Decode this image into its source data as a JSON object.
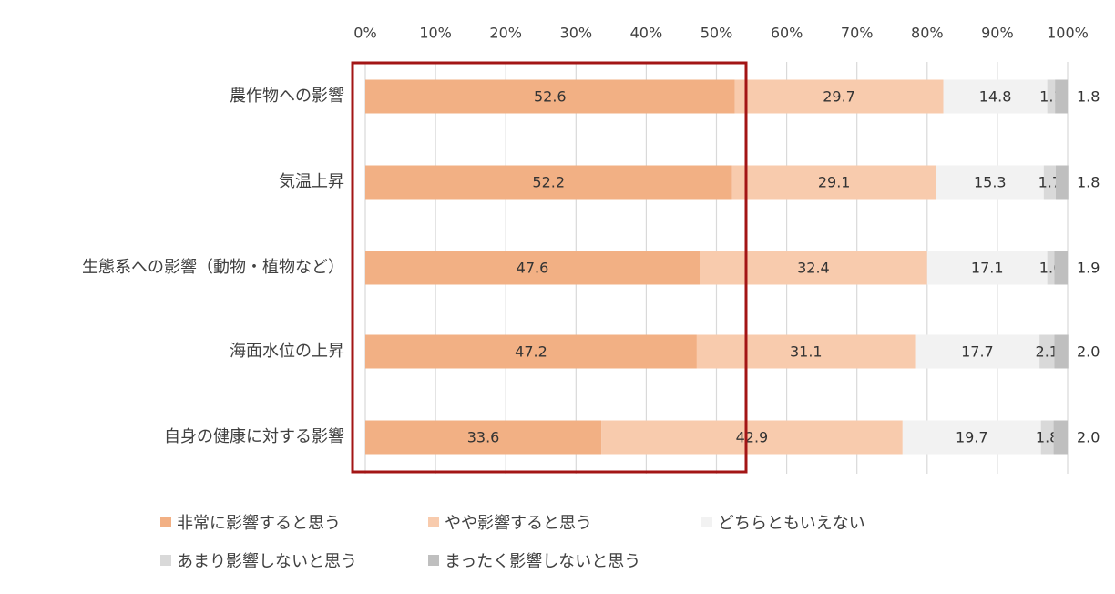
{
  "colors": {
    "very": "#F2B084",
    "somewhat": "#F8CBAD",
    "neutral": "#F2F2F2",
    "little": "#D9D9D9",
    "none": "#BFBFBF",
    "highlight": "#A31515",
    "grid": "#D9D9D9"
  },
  "chart_data": {
    "type": "bar",
    "orientation": "horizontal",
    "stacked": "percent",
    "x_ticks": [
      "0%",
      "10%",
      "20%",
      "30%",
      "40%",
      "50%",
      "60%",
      "70%",
      "80%",
      "90%",
      "100%"
    ],
    "xlim": [
      0,
      100
    ],
    "grid": true,
    "legend_position": "bottom",
    "categories": [
      "農作物への影響",
      "気温上昇",
      "生態系への影響（動物・植物など）",
      "海面水位の上昇",
      "自身の健康に対する影響"
    ],
    "series": [
      {
        "name": "非常に影響すると思う",
        "values": [
          52.6,
          52.2,
          47.6,
          47.2,
          33.6
        ]
      },
      {
        "name": "やや影響すると思う",
        "values": [
          29.7,
          29.1,
          32.4,
          31.1,
          42.9
        ]
      },
      {
        "name": "どちらともいえない",
        "values": [
          14.8,
          15.3,
          17.1,
          17.7,
          19.7
        ]
      },
      {
        "name": "あまり影響しないと思う",
        "values": [
          1.1,
          1.7,
          1.0,
          2.1,
          1.8
        ]
      },
      {
        "name": "まったく影響しないと思う",
        "values": [
          1.8,
          1.8,
          1.9,
          2.0,
          2.0
        ]
      }
    ],
    "highlight": {
      "series_index": 0,
      "description": ""
    }
  }
}
